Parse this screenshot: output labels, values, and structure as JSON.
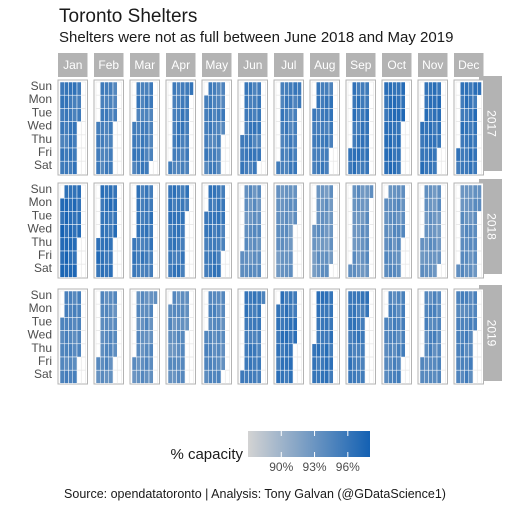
{
  "header": {
    "title": "Toronto Shelters",
    "subtitle": "Shelters were not as full between June 2018 and May 2019"
  },
  "caption": "Source: opendatatoronto  |  Analysis: Tony Galvan (@GDataScience1)",
  "chart_data": {
    "type": "heatmap",
    "title": "Toronto Shelters",
    "subtitle": "Shelters were not as full between June 2018 and May 2019",
    "months": [
      "Jan",
      "Feb",
      "Mar",
      "Apr",
      "May",
      "Jun",
      "Jul",
      "Aug",
      "Sep",
      "Oct",
      "Nov",
      "Dec"
    ],
    "weekdays": [
      "Sun",
      "Mon",
      "Tue",
      "Wed",
      "Thu",
      "Fri",
      "Sat"
    ],
    "years": [
      "2017",
      "2018",
      "2019"
    ],
    "legend": {
      "title": "% capacity",
      "ticks": [
        "90%",
        "93%",
        "96%"
      ],
      "tick_values": [
        90,
        93,
        96
      ],
      "range": [
        87,
        98
      ],
      "color_low": "#d3d3d3",
      "color_high": "#1461b3"
    },
    "cell_value_basis": "estimated monthly average % capacity (individual day values not recoverable)",
    "monthly_avg_capacity": {
      "2017": [
        95.5,
        95.0,
        95.2,
        95.3,
        95.0,
        95.4,
        95.2,
        95.6,
        96.0,
        96.6,
        96.4,
        96.2
      ],
      "2018": [
        97.0,
        96.3,
        95.6,
        95.8,
        95.6,
        93.5,
        93.2,
        93.0,
        93.4,
        93.6,
        93.2,
        93.5
      ],
      "2019": [
        94.5,
        94.0,
        93.8,
        93.6,
        94.2,
        95.5,
        96.0,
        96.0,
        95.6,
        94.5,
        94.3,
        94.5
      ]
    }
  }
}
